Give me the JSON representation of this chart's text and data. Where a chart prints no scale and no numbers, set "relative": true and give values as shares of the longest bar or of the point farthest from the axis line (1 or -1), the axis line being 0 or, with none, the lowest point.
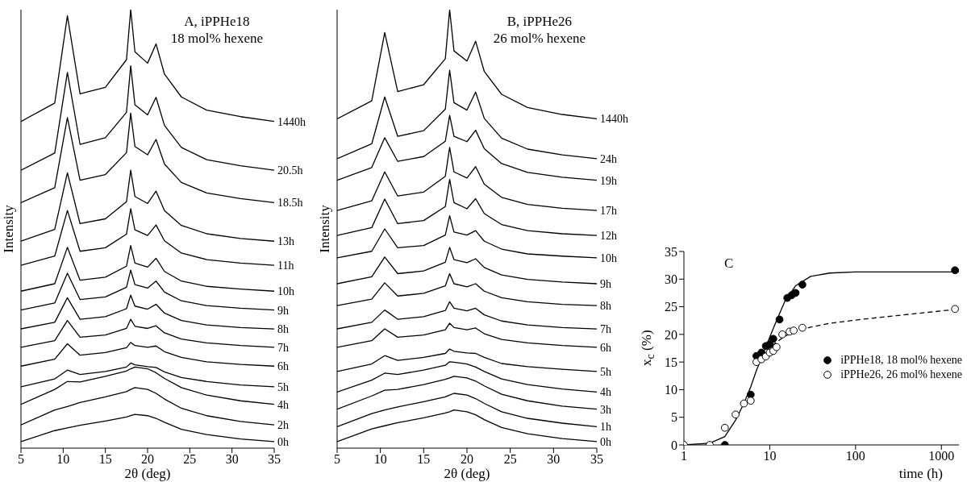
{
  "chart_data": [
    {
      "type": "line",
      "relative": true,
      "xlabel": "2θ (deg)",
      "ylabel": "Intensity",
      "annotations": [
        "A, iPPHe18",
        "18 mol% hexene"
      ],
      "xlim": [
        5,
        35
      ],
      "xticks": [
        5,
        10,
        15,
        20,
        25,
        30,
        35
      ],
      "x": [
        5,
        9,
        10.5,
        12,
        15,
        17.5,
        18,
        18.5,
        20,
        21,
        22,
        24,
        27,
        31,
        35
      ],
      "series": [
        {
          "name": "0h",
          "color": "#000000",
          "values": [
            0.015,
            0.04,
            0.046,
            0.052,
            0.062,
            0.071,
            0.074,
            0.077,
            0.074,
            0.068,
            0.059,
            0.043,
            0.031,
            0.021,
            0.015
          ]
        },
        {
          "name": "2h",
          "color": "#000000",
          "values": [
            0.053,
            0.087,
            0.095,
            0.104,
            0.117,
            0.129,
            0.134,
            0.138,
            0.134,
            0.125,
            0.112,
            0.091,
            0.074,
            0.061,
            0.053
          ]
        },
        {
          "name": "4h",
          "color": "#000000",
          "values": [
            0.1,
            0.134,
            0.152,
            0.151,
            0.164,
            0.176,
            0.181,
            0.185,
            0.181,
            0.172,
            0.159,
            0.138,
            0.121,
            0.108,
            0.1
          ]
        },
        {
          "name": "5h",
          "color": "#000000",
          "values": [
            0.14,
            0.158,
            0.178,
            0.168,
            0.175,
            0.185,
            0.194,
            0.19,
            0.186,
            0.184,
            0.174,
            0.161,
            0.152,
            0.144,
            0.14
          ]
        },
        {
          "name": "6h",
          "color": "#000000",
          "values": [
            0.187,
            0.203,
            0.238,
            0.212,
            0.218,
            0.229,
            0.241,
            0.234,
            0.23,
            0.233,
            0.22,
            0.207,
            0.197,
            0.191,
            0.187
          ]
        },
        {
          "name": "7h",
          "color": "#000000",
          "values": [
            0.23,
            0.245,
            0.291,
            0.253,
            0.258,
            0.273,
            0.294,
            0.278,
            0.273,
            0.279,
            0.263,
            0.249,
            0.24,
            0.234,
            0.23
          ]
        },
        {
          "name": "8h",
          "color": "#000000",
          "values": [
            0.272,
            0.287,
            0.343,
            0.294,
            0.3,
            0.318,
            0.349,
            0.324,
            0.317,
            0.328,
            0.308,
            0.291,
            0.281,
            0.275,
            0.272
          ]
        },
        {
          "name": "9h",
          "color": "#000000",
          "values": [
            0.315,
            0.331,
            0.399,
            0.339,
            0.345,
            0.367,
            0.406,
            0.373,
            0.365,
            0.381,
            0.356,
            0.336,
            0.325,
            0.319,
            0.315
          ]
        },
        {
          "name": "10h",
          "color": "#000000",
          "values": [
            0.358,
            0.375,
            0.458,
            0.383,
            0.39,
            0.415,
            0.462,
            0.422,
            0.413,
            0.433,
            0.403,
            0.381,
            0.369,
            0.363,
            0.358
          ]
        },
        {
          "name": "11h",
          "color": "#000000",
          "values": [
            0.417,
            0.438,
            0.542,
            0.449,
            0.457,
            0.488,
            0.546,
            0.498,
            0.485,
            0.509,
            0.473,
            0.445,
            0.43,
            0.422,
            0.417
          ]
        },
        {
          "name": "13h",
          "color": "#000000",
          "values": [
            0.472,
            0.499,
            0.628,
            0.512,
            0.523,
            0.562,
            0.634,
            0.574,
            0.558,
            0.586,
            0.542,
            0.508,
            0.489,
            0.478,
            0.472
          ]
        },
        {
          "name": "18.5h",
          "color": "#000000",
          "values": [
            0.56,
            0.594,
            0.754,
            0.611,
            0.624,
            0.674,
            0.764,
            0.688,
            0.669,
            0.704,
            0.648,
            0.606,
            0.582,
            0.569,
            0.56
          ]
        },
        {
          "name": "20.5h",
          "color": "#000000",
          "values": [
            0.634,
            0.673,
            0.857,
            0.693,
            0.708,
            0.766,
            0.872,
            0.783,
            0.76,
            0.8,
            0.736,
            0.686,
            0.658,
            0.644,
            0.634
          ]
        },
        {
          "name": "1440h",
          "color": "#000000",
          "values": [
            0.745,
            0.787,
            0.986,
            0.808,
            0.823,
            0.886,
            1.0,
            0.904,
            0.878,
            0.922,
            0.853,
            0.801,
            0.771,
            0.756,
            0.745
          ]
        }
      ]
    },
    {
      "type": "line",
      "relative": true,
      "xlabel": "2θ (deg)",
      "ylabel": "Intensity",
      "annotations": [
        "B, iPPHe26",
        "26 mol% hexene"
      ],
      "xlim": [
        5,
        35
      ],
      "xticks": [
        5,
        10,
        15,
        20,
        25,
        30,
        35
      ],
      "x": [
        5,
        9,
        10.5,
        12,
        15,
        17.5,
        18,
        18.5,
        20,
        21,
        22,
        24,
        27,
        31,
        35
      ],
      "series": [
        {
          "name": "0h",
          "color": "#000000",
          "values": [
            0.015,
            0.044,
            0.051,
            0.058,
            0.069,
            0.08,
            0.083,
            0.087,
            0.083,
            0.076,
            0.065,
            0.047,
            0.033,
            0.022,
            0.015
          ]
        },
        {
          "name": "1h",
          "color": "#000000",
          "values": [
            0.049,
            0.079,
            0.087,
            0.094,
            0.106,
            0.117,
            0.121,
            0.125,
            0.121,
            0.113,
            0.102,
            0.083,
            0.068,
            0.057,
            0.049
          ]
        },
        {
          "name": "3h",
          "color": "#000000",
          "values": [
            0.089,
            0.119,
            0.132,
            0.134,
            0.145,
            0.157,
            0.16,
            0.164,
            0.16,
            0.153,
            0.142,
            0.123,
            0.108,
            0.096,
            0.089
          ]
        },
        {
          "name": "4h",
          "color": "#000000",
          "values": [
            0.128,
            0.155,
            0.171,
            0.168,
            0.178,
            0.189,
            0.197,
            0.196,
            0.192,
            0.185,
            0.175,
            0.158,
            0.145,
            0.135,
            0.128
          ]
        },
        {
          "name": "5h",
          "color": "#000000",
          "values": [
            0.175,
            0.192,
            0.211,
            0.2,
            0.207,
            0.216,
            0.226,
            0.221,
            0.217,
            0.216,
            0.207,
            0.193,
            0.186,
            0.18,
            0.175
          ]
        },
        {
          "name": "6h",
          "color": "#000000",
          "values": [
            0.23,
            0.245,
            0.272,
            0.253,
            0.258,
            0.27,
            0.285,
            0.275,
            0.27,
            0.274,
            0.261,
            0.248,
            0.24,
            0.234,
            0.23
          ]
        },
        {
          "name": "7h",
          "color": "#000000",
          "values": [
            0.272,
            0.287,
            0.315,
            0.294,
            0.3,
            0.314,
            0.334,
            0.319,
            0.313,
            0.319,
            0.304,
            0.29,
            0.281,
            0.275,
            0.272
          ]
        },
        {
          "name": "8h",
          "color": "#000000",
          "values": [
            0.325,
            0.34,
            0.377,
            0.347,
            0.353,
            0.37,
            0.398,
            0.375,
            0.368,
            0.375,
            0.358,
            0.343,
            0.334,
            0.328,
            0.325
          ]
        },
        {
          "name": "9h",
          "color": "#000000",
          "values": [
            0.375,
            0.391,
            0.436,
            0.398,
            0.404,
            0.424,
            0.458,
            0.43,
            0.423,
            0.432,
            0.412,
            0.395,
            0.385,
            0.379,
            0.375
          ]
        },
        {
          "name": "10h",
          "color": "#000000",
          "values": [
            0.434,
            0.449,
            0.5,
            0.457,
            0.462,
            0.486,
            0.53,
            0.493,
            0.486,
            0.496,
            0.472,
            0.454,
            0.443,
            0.438,
            0.434
          ]
        },
        {
          "name": "12h",
          "color": "#000000",
          "values": [
            0.485,
            0.503,
            0.568,
            0.512,
            0.519,
            0.551,
            0.613,
            0.56,
            0.546,
            0.569,
            0.535,
            0.51,
            0.496,
            0.489,
            0.485
          ]
        },
        {
          "name": "17h",
          "color": "#000000",
          "values": [
            0.542,
            0.564,
            0.63,
            0.575,
            0.584,
            0.62,
            0.686,
            0.63,
            0.616,
            0.642,
            0.602,
            0.572,
            0.556,
            0.547,
            0.542
          ]
        },
        {
          "name": "19h",
          "color": "#000000",
          "values": [
            0.611,
            0.64,
            0.708,
            0.654,
            0.665,
            0.7,
            0.759,
            0.711,
            0.699,
            0.725,
            0.683,
            0.649,
            0.629,
            0.618,
            0.611
          ]
        },
        {
          "name": "24h",
          "color": "#000000",
          "values": [
            0.66,
            0.694,
            0.801,
            0.711,
            0.724,
            0.773,
            0.862,
            0.788,
            0.771,
            0.812,
            0.752,
            0.707,
            0.682,
            0.669,
            0.66
          ]
        },
        {
          "name": "1440h",
          "color": "#000000",
          "values": [
            0.751,
            0.792,
            0.948,
            0.813,
            0.829,
            0.888,
            1.0,
            0.906,
            0.883,
            0.928,
            0.859,
            0.807,
            0.777,
            0.761,
            0.751
          ]
        }
      ]
    },
    {
      "type": "scatter",
      "xlabel": "time (h)",
      "ylabel": "x$_{c}$ (%)",
      "annotations": [
        "C"
      ],
      "log": "x",
      "xlim": [
        1,
        1600
      ],
      "xticks": [
        1,
        10,
        100,
        1000
      ],
      "ylim": [
        0,
        35
      ],
      "yticks": [
        0,
        5,
        10,
        15,
        20,
        25,
        30,
        35
      ],
      "legend": "right",
      "series": [
        {
          "type": "line",
          "color": "#000000",
          "line_style": "solid",
          "x": [
            1,
            2,
            3,
            4,
            5,
            6,
            7,
            8,
            10,
            12,
            15,
            20,
            30,
            50,
            100,
            1600
          ],
          "values": [
            0,
            0.3,
            1.5,
            4.5,
            7.5,
            10.5,
            13.5,
            15.7,
            19.5,
            22.5,
            26,
            28.8,
            30.5,
            31.1,
            31.3,
            31.3
          ]
        },
        {
          "type": "line",
          "color": "#000000",
          "line_style": "dashed",
          "x": [
            8,
            10,
            12,
            15,
            20,
            30,
            50,
            100,
            300,
            1440
          ],
          "values": [
            15.8,
            17.6,
            18.6,
            19.7,
            20.5,
            21.3,
            22,
            22.6,
            23.4,
            24.5
          ]
        },
        {
          "name": "iPPHe18, 18 mol% hexene",
          "color": "#000000",
          "marker": "circle",
          "x": [
            3,
            6,
            7,
            8,
            9,
            10,
            11,
            13,
            16,
            18,
            20,
            24,
            1440
          ],
          "values": [
            0,
            9.1,
            16.1,
            16.7,
            17.9,
            18.2,
            19.2,
            22.7,
            26.6,
            27.1,
            27.5,
            29,
            31.6
          ]
        },
        {
          "name": "iPPHe26, 26 mol% hexene",
          "color": "#ffffff",
          "marker": "circle",
          "x": [
            1,
            2,
            3,
            4,
            5,
            6,
            7,
            8,
            9,
            10,
            11,
            12,
            14,
            17,
            19,
            24,
            1440
          ],
          "values": [
            0,
            0,
            3.1,
            5.5,
            7.5,
            8,
            15,
            15.5,
            16,
            16.7,
            17,
            17.7,
            20,
            20.5,
            20.7,
            21.2,
            24.6
          ]
        }
      ]
    }
  ]
}
